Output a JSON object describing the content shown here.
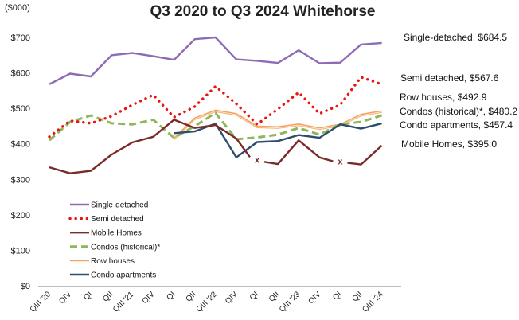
{
  "chart_data": {
    "type": "line",
    "title": "Q3 2020 to Q3 2024 Whitehorse",
    "ylabel": "($000)",
    "ylim": [
      0,
      750
    ],
    "yticks": [
      0,
      100,
      200,
      300,
      400,
      500,
      600,
      700
    ],
    "ytick_labels": [
      "$0",
      "$100",
      "$200",
      "$300",
      "$400",
      "$500",
      "$600",
      "$700"
    ],
    "categories": [
      "QIII '20",
      "QIV",
      "QI",
      "QII",
      "QIII '21",
      "QIV",
      "QI",
      "QII",
      "QIII '22",
      "QIV",
      "QI",
      "QII",
      "QIII '23",
      "QIV",
      "QI",
      "QII",
      "QIII '24"
    ],
    "grid": false,
    "legend_position": "bottom-left",
    "series": [
      {
        "name": "Single-detached",
        "color": "#8E6BB5",
        "style": "solid",
        "end_label": "Single-detached, $684.5",
        "values": [
          568,
          598,
          590,
          650,
          656,
          647,
          637,
          695,
          700,
          638,
          634,
          628,
          664,
          627,
          629,
          680,
          684.5
        ]
      },
      {
        "name": "Semi detached",
        "color": "#E8150F",
        "style": "dotted",
        "end_label": "Semi detached, $567.6",
        "values": [
          420,
          465,
          458,
          478,
          510,
          538,
          475,
          505,
          562,
          513,
          455,
          498,
          545,
          485,
          510,
          588,
          567.6
        ]
      },
      {
        "name": "Mobile Homes",
        "color": "#7B2A2A",
        "style": "solid",
        "end_label": "Mobile Homes, $395.0",
        "values": [
          334,
          317,
          324,
          370,
          404,
          420,
          468,
          445,
          453,
          415,
          null,
          343,
          410,
          362,
          null,
          342,
          395.0
        ],
        "breaks": [
          {
            "label": "x",
            "x": 10,
            "y": 356
          },
          {
            "label": "x",
            "x": 14,
            "y": 351
          }
        ]
      },
      {
        "name": "Condos (historical)*",
        "color": "#8DB75A",
        "style": "dashed",
        "end_label": "Condos (historical)*, $480.2",
        "values": [
          410,
          462,
          480,
          458,
          455,
          468,
          417,
          450,
          487,
          413,
          418,
          426,
          445,
          426,
          455,
          462,
          480.2
        ]
      },
      {
        "name": "Row houses",
        "color": "#F4A460",
        "style": "solid",
        "end_label": "Row houses, $492.9",
        "values": [
          null,
          null,
          null,
          null,
          null,
          null,
          416,
          473,
          495,
          485,
          450,
          448,
          456,
          445,
          455,
          483,
          492.9
        ]
      },
      {
        "name": "Condo apartments",
        "color": "#2C4D6E",
        "style": "solid",
        "end_label": "Condo apartments, $457.4",
        "values": [
          null,
          null,
          null,
          null,
          null,
          null,
          430,
          435,
          457,
          362,
          405,
          408,
          425,
          417,
          455,
          443,
          457.4
        ]
      }
    ]
  }
}
